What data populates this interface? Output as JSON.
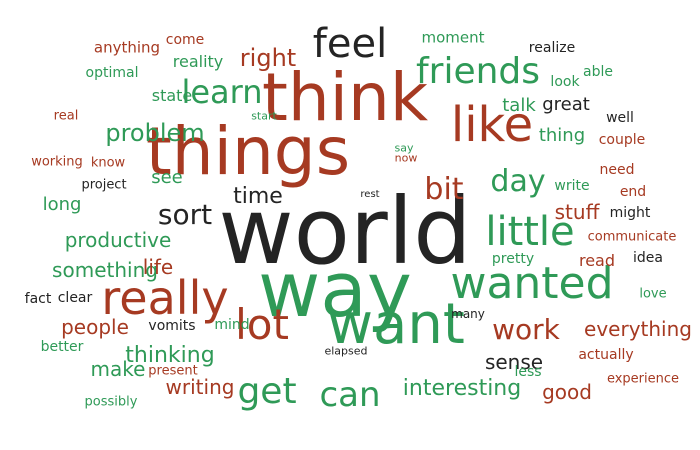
{
  "colors": {
    "green": "#2f9a57",
    "red": "#a63a22",
    "black": "#242424",
    "orange": "#c7653d",
    "light_green": "#6aa570",
    "brown": "#9c6b53"
  },
  "words": {
    "world": "world",
    "way": "way",
    "think": "think",
    "things": "things",
    "want": "want",
    "really": "really",
    "lot": "lot",
    "wanted": "wanted",
    "like": "like",
    "feel": "feel",
    "friends": "friends",
    "learn": "learn",
    "little": "little",
    "can": "can",
    "get": "get",
    "day": "day",
    "bit": "bit",
    "problem": "problem",
    "sort": "sort",
    "time": "time",
    "right": "right",
    "work": "work",
    "interesting": "interesting",
    "thinking": "thinking",
    "everything": "everything",
    "productive": "productive",
    "something": "something",
    "people": "people",
    "stuff": "stuff",
    "life": "life",
    "sense": "sense",
    "good": "good",
    "writing": "writing",
    "make": "make",
    "thing": "thing",
    "talk": "talk",
    "great": "great",
    "see": "see",
    "long": "long",
    "reality": "reality",
    "state": "state",
    "optimal": "optimal",
    "moment": "moment",
    "come": "come",
    "anything": "anything",
    "realize": "realize",
    "able": "able",
    "look": "look",
    "well": "well",
    "couple": "couple",
    "write": "write",
    "might": "might",
    "need": "need",
    "end": "end",
    "communicate": "communicate",
    "read": "read",
    "idea": "idea",
    "love": "love",
    "pretty": "pretty",
    "experience": "experience",
    "actually": "actually",
    "less": "less",
    "many": "many",
    "clear": "clear",
    "fact": "fact",
    "better": "better",
    "possibly": "possibly",
    "vomits": "vomits",
    "mind": "mind",
    "present": "present",
    "project": "project",
    "working": "working",
    "know": "know",
    "real": "real",
    "start": "start",
    "say": "say",
    "now": "now",
    "rest": "rest",
    "elapsed": "elapsed"
  }
}
